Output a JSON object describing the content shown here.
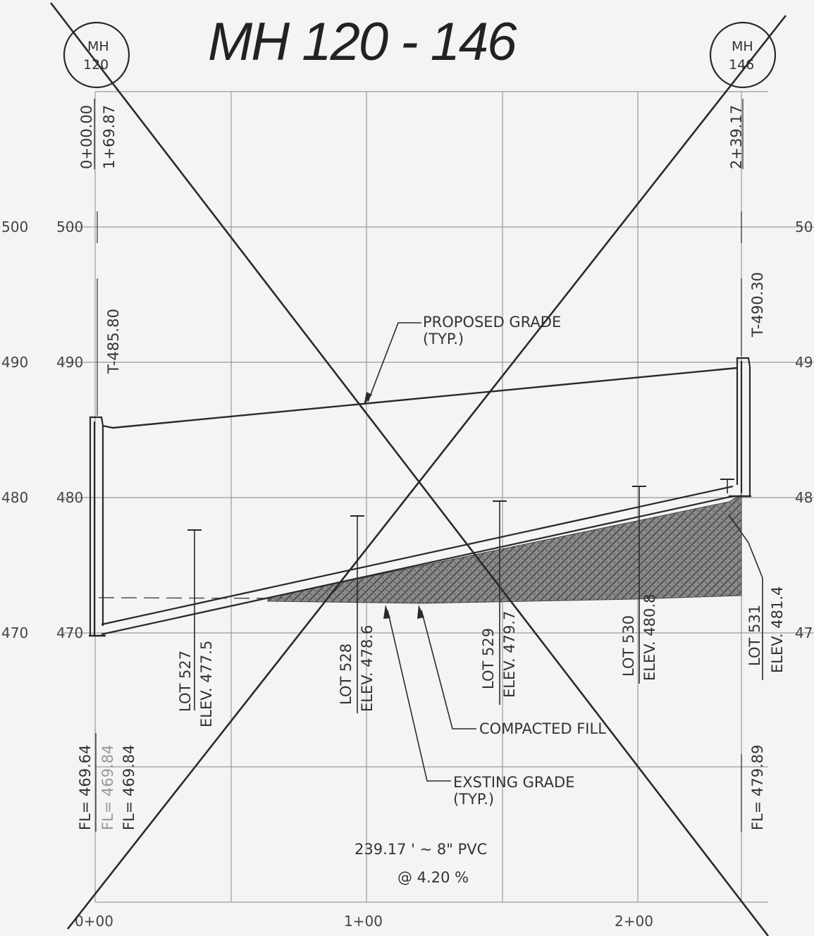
{
  "title": "MH 120 - 146",
  "manholes": [
    {
      "label_line1": "MH",
      "label_line2": "120"
    },
    {
      "label_line1": "MH",
      "label_line2": "146"
    }
  ],
  "stations_top_left": [
    "0+00.00",
    "1+69.87"
  ],
  "station_top_right": "2+39.17",
  "elevation_labels_outer": [
    "500",
    "490",
    "480",
    "470"
  ],
  "elevation_labels_right": [
    "50",
    "49",
    "48",
    "47"
  ],
  "elevation_labels_inner": [
    "500",
    "490",
    "480",
    "470"
  ],
  "top_elev_left": "T-485.80",
  "top_elev_right": "T-490.30",
  "proposed_grade": {
    "line1": "PROPOSED GRADE",
    "line2": "(TYP.)"
  },
  "existing_grade": {
    "line1": "EXSTING GRADE",
    "line2": "(TYP.)"
  },
  "compacted_fill": "COMPACTED FILL",
  "lots": [
    {
      "lot": "LOT 527",
      "elev": "ELEV. 477.5"
    },
    {
      "lot": "LOT 528",
      "elev": "ELEV. 478.6"
    },
    {
      "lot": "LOT 529",
      "elev": "ELEV. 479.7"
    },
    {
      "lot": "LOT 530",
      "elev": "ELEV. 480.8"
    },
    {
      "lot": "LOT 531",
      "elev": "ELEV. 481.4"
    }
  ],
  "flowlines_left": [
    "FL= 469.64",
    "FL= 469.84",
    "FL= 469.84"
  ],
  "flowline_right": "FL= 479.89",
  "pipe_spec": "239.17 ' ~ 8\" PVC",
  "pipe_slope": "@ 4.20 %",
  "stations_bottom": [
    "0+00",
    "1+00",
    "2+00"
  ],
  "colors": {
    "ink": "#2a2a2a",
    "grid": "#9a9a9a",
    "hatch": "#555555",
    "paper": "#f4f4f2"
  }
}
